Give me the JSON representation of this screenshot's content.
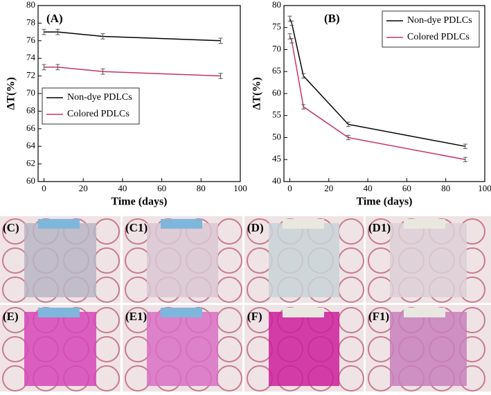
{
  "chart_data": [
    {
      "type": "line",
      "panel_label": "(A)",
      "xlabel": "Time (days)",
      "ylabel": "ΔT(%)",
      "x": [
        0,
        7,
        30,
        90
      ],
      "series": [
        {
          "name": "Non-dye PDLCs",
          "color": "#000000",
          "values": [
            77,
            77,
            76.5,
            76
          ],
          "errors": [
            0.3,
            0.3,
            0.3,
            0.3
          ]
        },
        {
          "name": "Colored PDLCs",
          "color": "#c8306e",
          "values": [
            73,
            73,
            72.5,
            72
          ],
          "errors": [
            0.3,
            0.3,
            0.3,
            0.3
          ]
        }
      ],
      "xlim": [
        -3,
        100
      ],
      "xticks": [
        0,
        20,
        40,
        60,
        80,
        100
      ],
      "ylim": [
        60,
        80
      ],
      "yticks": [
        60,
        62,
        64,
        66,
        68,
        70,
        72,
        74,
        76,
        78,
        80
      ],
      "legend": "center left"
    },
    {
      "type": "line",
      "panel_label": "(B)",
      "xlabel": "Time (days)",
      "ylabel": "ΔT(%)",
      "x": [
        0,
        1,
        7,
        30,
        90
      ],
      "series": [
        {
          "name": "Non-dye PDLCs",
          "color": "#000000",
          "values": [
            77,
            76,
            64,
            53,
            48
          ],
          "errors": [
            0.6,
            0.5,
            0.5,
            0.5,
            0.5
          ]
        },
        {
          "name": "Colored PDLCs",
          "color": "#c8306e",
          "values": [
            73,
            72,
            57,
            50,
            45
          ],
          "errors": [
            0.6,
            0.5,
            0.5,
            0.5,
            0.5
          ]
        }
      ],
      "xlim": [
        -3,
        100
      ],
      "xticks": [
        0,
        20,
        40,
        60,
        80,
        100
      ],
      "ylim": [
        40,
        80
      ],
      "yticks": [
        40,
        45,
        50,
        55,
        60,
        65,
        70,
        75,
        80
      ],
      "legend": "upper right"
    }
  ],
  "photos": [
    {
      "label": "(C)",
      "tint": "#b8b6c4"
    },
    {
      "label": "(C1)",
      "tint": "#d9c7d2"
    },
    {
      "label": "(D)",
      "tint": "#c9d3d6"
    },
    {
      "label": "(D1)",
      "tint": "#dcd0d6"
    },
    {
      "label": "(E)",
      "tint": "#d646b8"
    },
    {
      "label": "(E1)",
      "tint": "#d870c4"
    },
    {
      "label": "(F)",
      "tint": "#cc1f9a"
    },
    {
      "label": "(F1)",
      "tint": "#c880bc"
    }
  ]
}
